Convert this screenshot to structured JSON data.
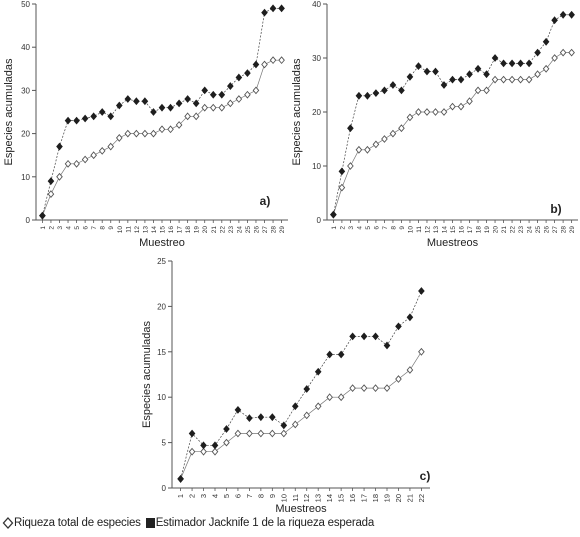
{
  "chart_data": [
    {
      "type": "line",
      "panel_label": "a)",
      "xlabel": "Muestreo",
      "ylabel": "Especies acumuladas",
      "ylim": [
        0,
        50
      ],
      "yticks": [
        "0",
        "10",
        "20",
        "30",
        "40",
        "50"
      ],
      "categories": [
        "1",
        "2",
        "3",
        "4",
        "5",
        "6",
        "7",
        "8",
        "9",
        "10",
        "11",
        "12",
        "13",
        "14",
        "15",
        "16",
        "17",
        "18",
        "19",
        "20",
        "21",
        "22",
        "23",
        "24",
        "25",
        "26",
        "27",
        "28",
        "29"
      ],
      "series": [
        {
          "name": "Riqueza total de especies",
          "marker": "open-diamond",
          "values": [
            1,
            6,
            10,
            13,
            13,
            14,
            15,
            16,
            17,
            19,
            20,
            20,
            20,
            20,
            21,
            21,
            22,
            24,
            24,
            26,
            26,
            26,
            27,
            28,
            29,
            30,
            36,
            37,
            37
          ]
        },
        {
          "name": "Estimador Jacknife 1 de la riqueza esperada",
          "marker": "filled-diamond",
          "values": [
            1,
            9,
            17,
            23,
            23,
            23.5,
            24,
            25,
            24,
            26.5,
            28,
            27.5,
            27.5,
            25,
            26,
            26,
            27,
            28,
            27,
            30,
            29,
            29,
            31,
            33,
            34,
            36,
            48,
            49,
            49
          ]
        }
      ]
    },
    {
      "type": "line",
      "panel_label": "b)",
      "xlabel": "Muestreos",
      "ylabel": "Especies acumuladas",
      "ylim": [
        0,
        40
      ],
      "yticks": [
        "0",
        "10",
        "20",
        "30",
        "40"
      ],
      "categories": [
        "1",
        "2",
        "3",
        "4",
        "5",
        "6",
        "7",
        "8",
        "9",
        "10",
        "11",
        "12",
        "13",
        "14",
        "15",
        "16",
        "17",
        "18",
        "19",
        "20",
        "21",
        "22",
        "23",
        "24",
        "25",
        "26",
        "27",
        "28",
        "29"
      ],
      "series": [
        {
          "name": "Riqueza total de especies",
          "marker": "open-diamond",
          "values": [
            1,
            6,
            10,
            13,
            13,
            14,
            15,
            16,
            17,
            19,
            20,
            20,
            20,
            20,
            21,
            21,
            22,
            24,
            24,
            26,
            26,
            26,
            26,
            26,
            27,
            28,
            30,
            31,
            31
          ]
        },
        {
          "name": "Estimador Jacknife 1 de la riqueza esperada",
          "marker": "filled-diamond",
          "values": [
            1,
            9,
            17,
            23,
            23,
            23.5,
            24,
            25,
            24,
            26.5,
            28.5,
            27.5,
            27.5,
            25,
            26,
            26,
            27,
            28,
            27,
            30,
            29,
            29,
            29,
            29,
            31,
            33,
            37,
            38,
            38
          ]
        }
      ]
    },
    {
      "type": "line",
      "panel_label": "c)",
      "xlabel": "Muestreos",
      "ylabel": "Especies acumuladas",
      "ylim": [
        0,
        25
      ],
      "yticks": [
        "0",
        "5",
        "10",
        "15",
        "20",
        "25"
      ],
      "categories": [
        "1",
        "2",
        "3",
        "4",
        "5",
        "6",
        "7",
        "8",
        "9",
        "10",
        "11",
        "12",
        "13",
        "14",
        "15",
        "16",
        "17",
        "18",
        "19",
        "20",
        "21",
        "22"
      ],
      "series": [
        {
          "name": "Riqueza total de especies",
          "marker": "open-diamond",
          "values": [
            1,
            4,
            4,
            4,
            5,
            6,
            6,
            6,
            6,
            6,
            7,
            8,
            9,
            10,
            10,
            11,
            11,
            11,
            11,
            12,
            13,
            15
          ]
        },
        {
          "name": "Estimador Jacknife 1 de la riqueza esperada",
          "marker": "filled-diamond",
          "values": [
            1,
            6,
            4.7,
            4.7,
            6.5,
            8.6,
            7.7,
            7.8,
            7.8,
            6.9,
            9,
            10.9,
            12.8,
            14.7,
            14.7,
            16.7,
            16.7,
            16.7,
            15.7,
            17.8,
            18.8,
            21.7
          ]
        }
      ]
    }
  ],
  "legend": {
    "items": [
      {
        "marker": "open-diamond",
        "label": "Riqueza total de especies"
      },
      {
        "marker": "filled-square",
        "label": "Estimador Jacknife 1 de la riqueza esperada"
      }
    ]
  }
}
